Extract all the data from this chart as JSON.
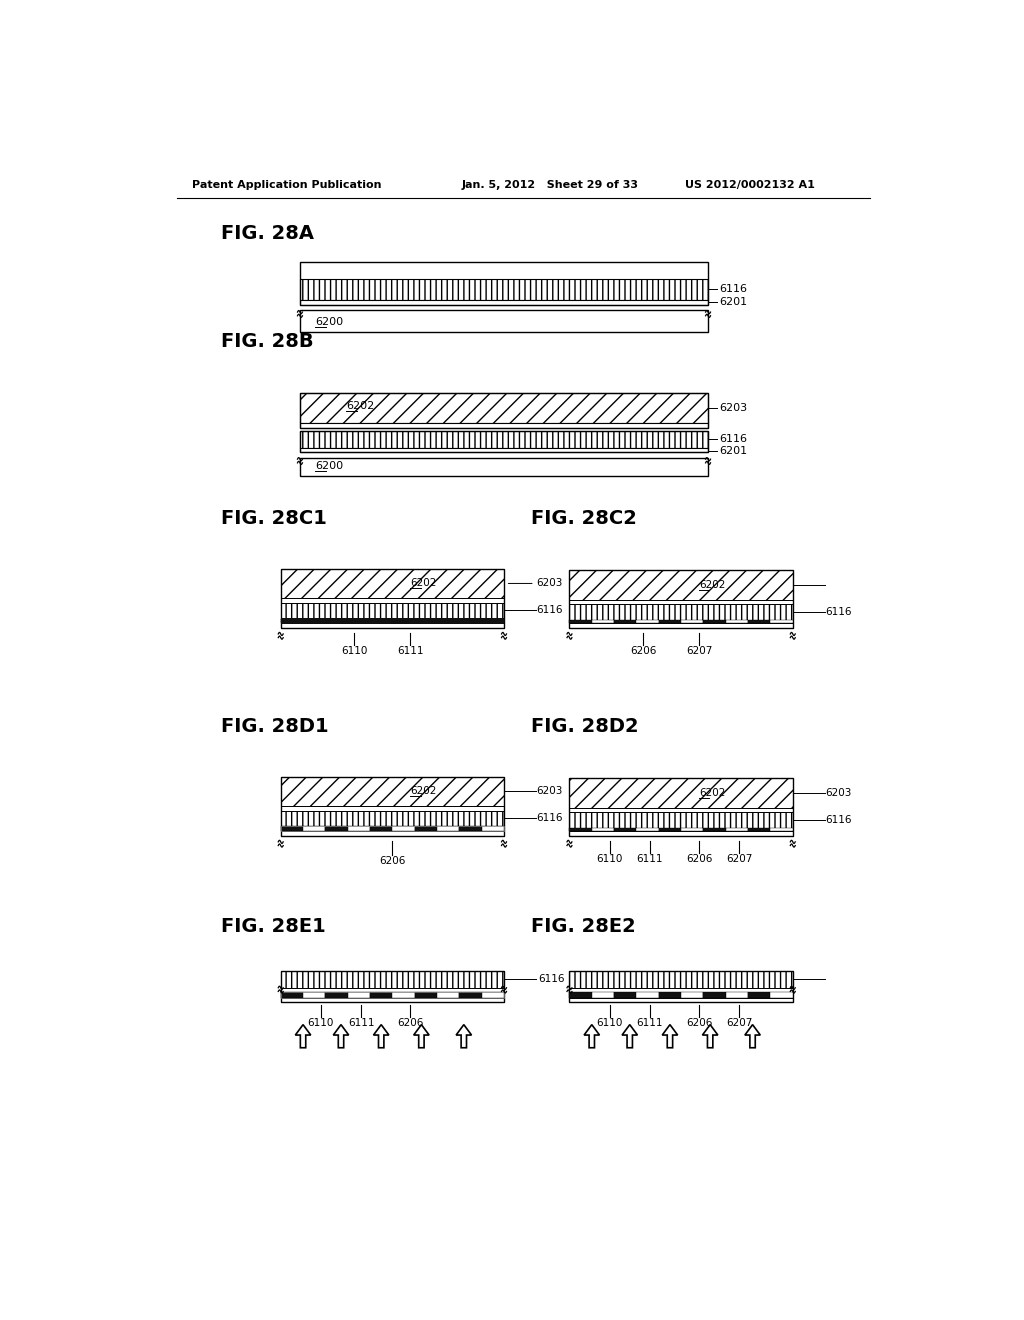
{
  "header_left": "Patent Application Publication",
  "header_mid": "Jan. 5, 2012   Sheet 29 of 33",
  "header_right": "US 2012/0002132 A1",
  "bg_color": "#ffffff"
}
